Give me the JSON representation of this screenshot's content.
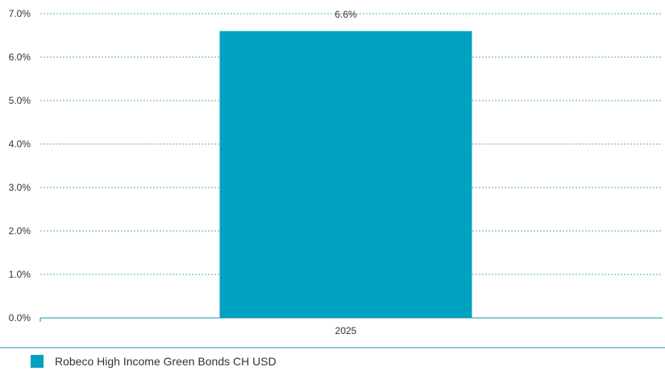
{
  "chart_data": {
    "type": "bar",
    "categories": [
      "2025"
    ],
    "series": [
      {
        "name": "Robeco High Income Green Bonds CH USD",
        "values": [
          6.6
        ]
      }
    ],
    "data_labels": [
      "6.6%"
    ],
    "y_ticks": [
      "0.0%",
      "1.0%",
      "2.0%",
      "3.0%",
      "4.0%",
      "5.0%",
      "6.0%",
      "7.0%"
    ],
    "ylim": [
      0,
      7
    ],
    "grid": true,
    "legend_position": "bottom-left",
    "colors": {
      "bar": "#00a2bf",
      "grid": "#1f8fb2",
      "axis": "#1f8fb2"
    }
  },
  "legend": {
    "label": "Robeco High Income Green Bonds CH USD"
  }
}
